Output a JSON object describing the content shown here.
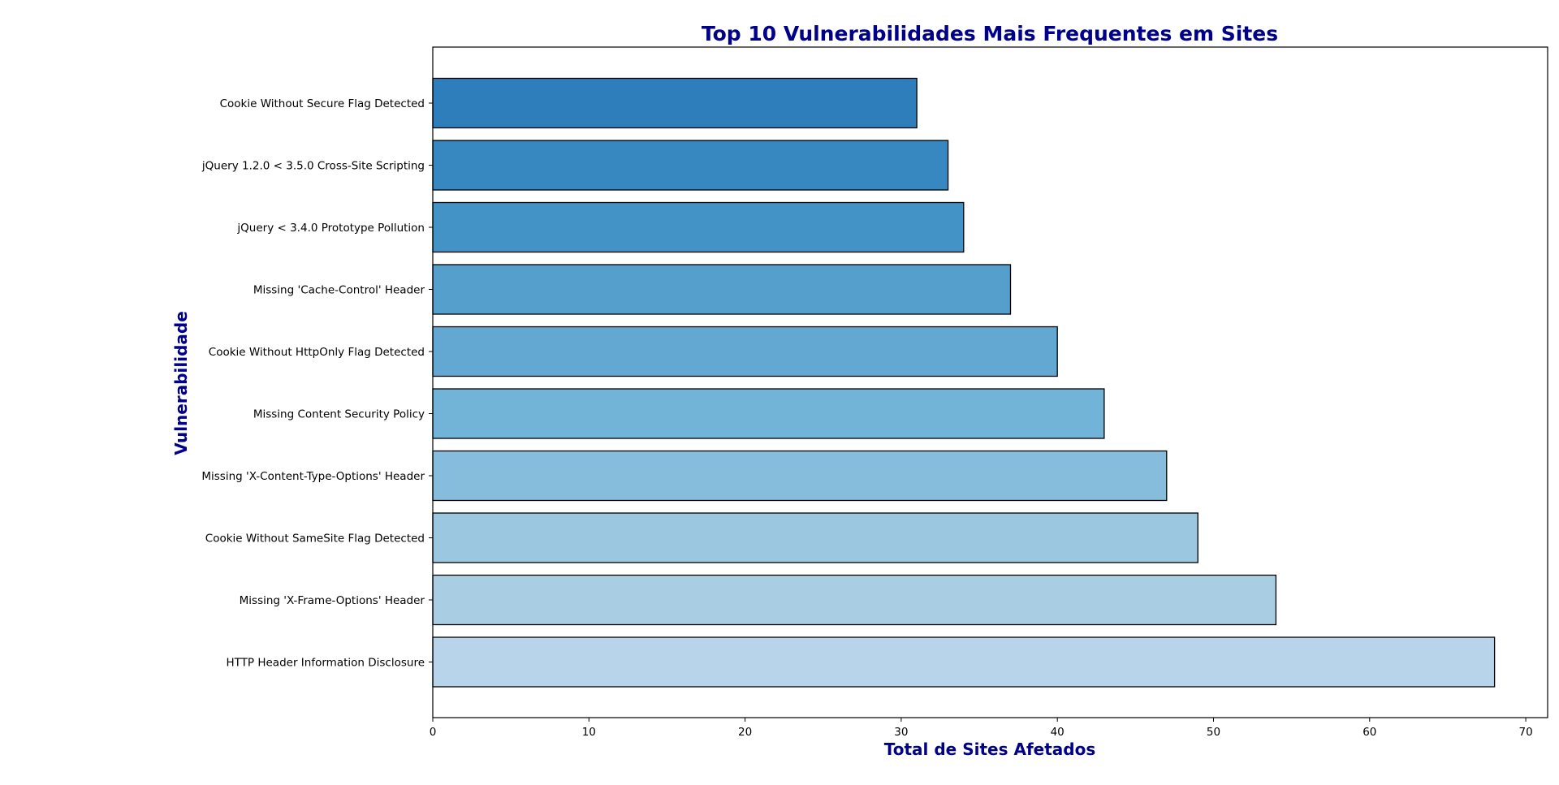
{
  "chart_data": {
    "type": "bar",
    "orientation": "horizontal",
    "title": "Top 10 Vulnerabilidades Mais Frequentes em Sites",
    "xlabel": "Total de Sites Afetados",
    "ylabel": "Vulnerabilidade",
    "xlim": [
      0,
      71.4
    ],
    "xticks": [
      "0",
      "10",
      "20",
      "30",
      "40",
      "50",
      "60",
      "70"
    ],
    "grid": false,
    "legend": "none",
    "title_color": "#00008b",
    "bar_edge_color": "#000000",
    "categories": [
      "Cookie Without Secure Flag Detected",
      "jQuery 1.2.0 < 3.5.0 Cross-Site Scripting",
      "jQuery < 3.4.0 Prototype Pollution",
      "Missing 'Cache-Control' Header",
      "Cookie Without HttpOnly Flag Detected",
      "Missing Content Security Policy",
      "Missing 'X-Content-Type-Options' Header",
      "Cookie Without SameSite Flag Detected",
      "Missing 'X-Frame-Options' Header",
      "HTTP Header Information Disclosure"
    ],
    "values": [
      31,
      33,
      34,
      37,
      40,
      43,
      47,
      49,
      54,
      68
    ],
    "colors": [
      "#2e7ebc",
      "#3787c0",
      "#4493c7",
      "#559fcd",
      "#62a8d3",
      "#72b3d8",
      "#86bcdc",
      "#9bc7e0",
      "#a9cee4",
      "#b7d4ea"
    ]
  }
}
